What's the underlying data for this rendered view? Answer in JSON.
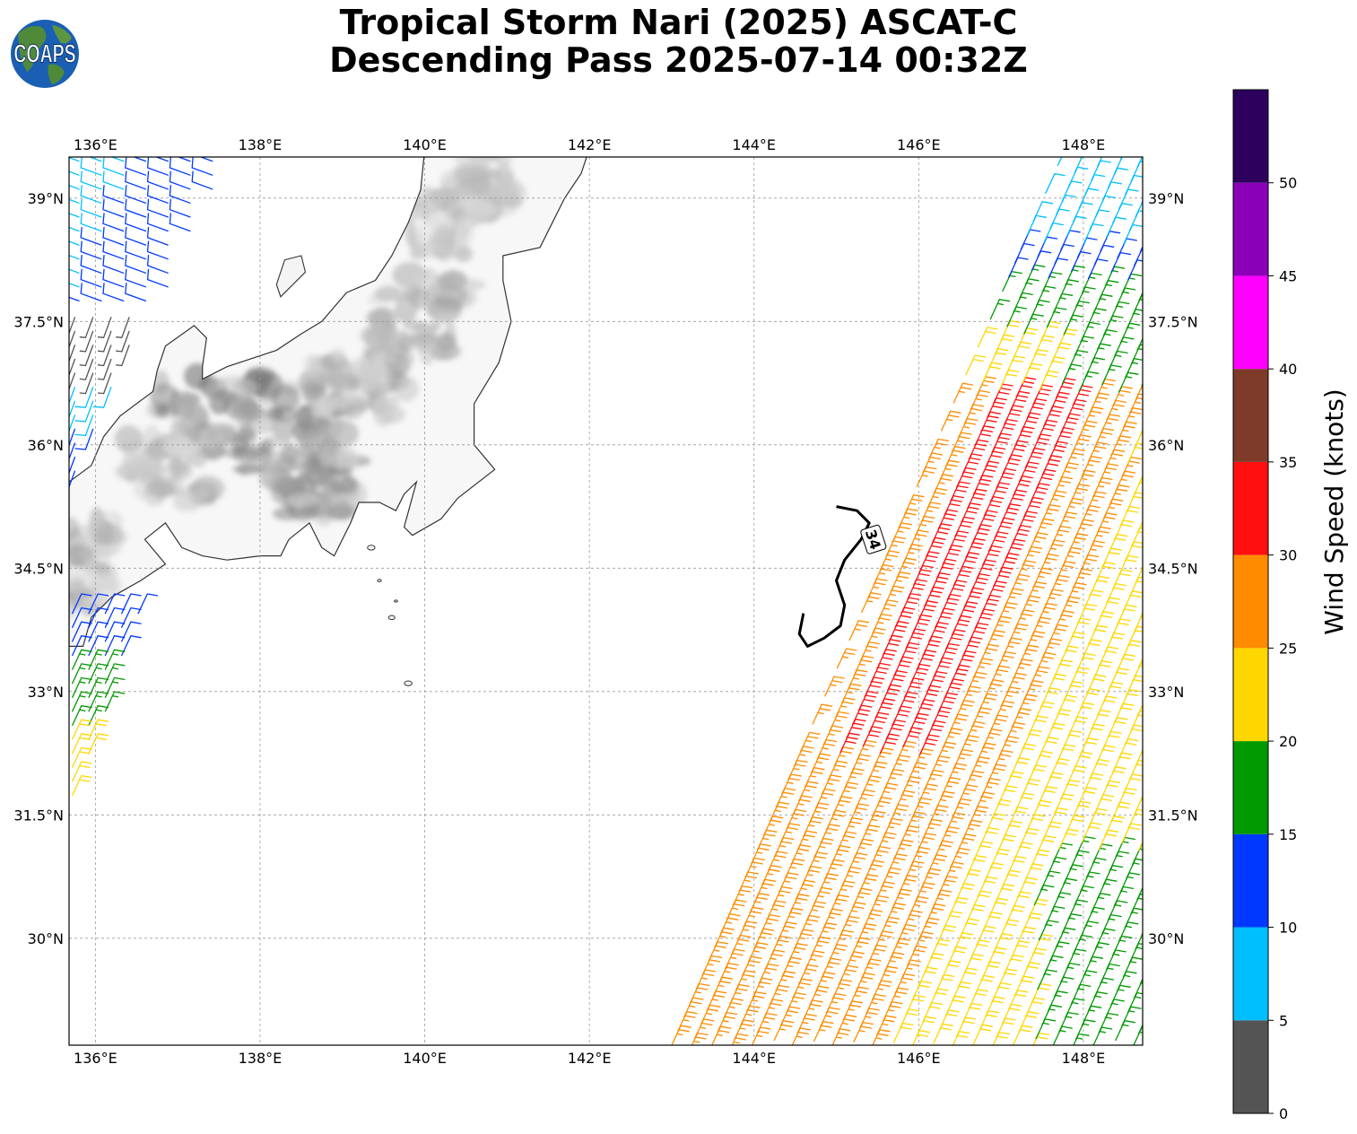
{
  "title": {
    "line1": "Tropical Storm Nari (2025) ASCAT-C",
    "line2": "Descending Pass 2025-07-14 00:32Z"
  },
  "logo": {
    "text": "COAPS",
    "ocean_color": "#1a5fb4",
    "land_color": "#4f8a3a"
  },
  "map": {
    "lon_range": [
      135.68,
      148.72
    ],
    "lat_range": [
      28.7,
      39.5
    ],
    "lon_ticks": [
      136,
      138,
      140,
      142,
      144,
      146,
      148
    ],
    "lat_ticks": [
      30,
      31.5,
      33,
      34.5,
      36,
      37.5,
      39
    ],
    "lon_tick_labels": [
      "136°E",
      "138°E",
      "140°E",
      "142°E",
      "144°E",
      "146°E",
      "148°E"
    ],
    "lat_tick_labels": [
      "30°N",
      "31.5°N",
      "33°N",
      "34.5°N",
      "36°N",
      "37.5°N",
      "39°N"
    ],
    "gridlines": true,
    "coast_color": "#333333",
    "terrain": "grayscale",
    "contour_label": "34",
    "contour_color": "#000000"
  },
  "colorbar": {
    "label": "Wind Speed (knots)",
    "bounds": [
      0,
      5,
      10,
      15,
      20,
      25,
      30,
      35,
      40,
      45,
      50,
      55
    ],
    "tick_labels": [
      "0",
      "5",
      "10",
      "15",
      "20",
      "25",
      "30",
      "35",
      "40",
      "45",
      "50"
    ],
    "colors": [
      "#545454",
      "#00bfff",
      "#0038ff",
      "#009900",
      "#ffd700",
      "#ff8c00",
      "#ff0f0f",
      "#7e3b2a",
      "#ff00ff",
      "#8a00b8",
      "#2d005e"
    ]
  },
  "wind_barb_regions": [
    {
      "name": "swath-east-edge-yellow-orange",
      "speed_kt": 24
    },
    {
      "name": "swath-core-red",
      "speed_kt": 32
    },
    {
      "name": "swath-middle-orange",
      "speed_kt": 27
    },
    {
      "name": "swath-east-yellow",
      "speed_kt": 22
    },
    {
      "name": "swath-northeast-green",
      "speed_kt": 17
    },
    {
      "name": "swath-northeast-blue",
      "speed_kt": 12
    },
    {
      "name": "swath-southeast-green",
      "speed_kt": 17
    },
    {
      "name": "western-pass-blue",
      "speed_kt": 11
    },
    {
      "name": "western-pass-cyan",
      "speed_kt": 8
    },
    {
      "name": "western-pass-gray",
      "speed_kt": 3
    },
    {
      "name": "western-pass-south-green",
      "speed_kt": 17
    },
    {
      "name": "western-pass-south-yellow",
      "speed_kt": 22
    }
  ]
}
